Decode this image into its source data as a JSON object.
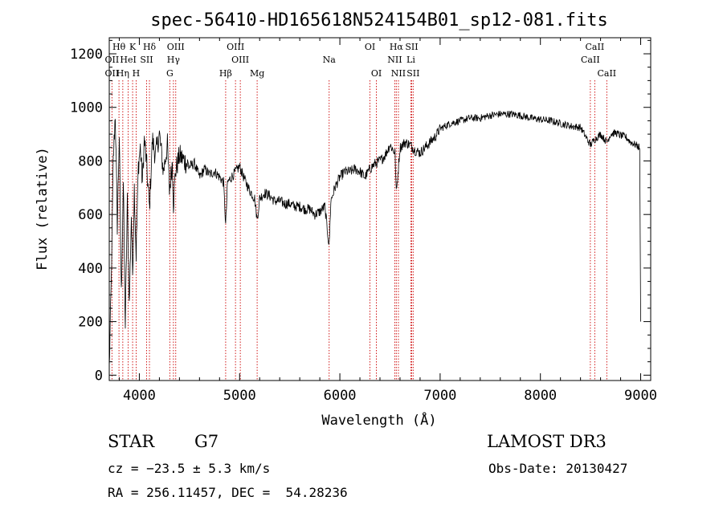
{
  "chart_data": {
    "type": "line",
    "title": "spec-56410-HD165618N524154B01_sp12-081.fits",
    "xlabel": "Wavelength (Å)",
    "ylabel": "Flux (relative)",
    "xlim": [
      3700,
      9100
    ],
    "ylim": [
      -20,
      1260
    ],
    "x_ticks": [
      4000,
      5000,
      6000,
      7000,
      8000,
      9000
    ],
    "y_ticks": [
      0,
      200,
      400,
      600,
      800,
      1000,
      1200
    ],
    "series": [
      {
        "x": [
          3700,
          3720,
          3740,
          3760,
          3780,
          3800,
          3820,
          3840,
          3860,
          3880,
          3900,
          3920,
          3933,
          3950,
          3968,
          3990,
          4010,
          4030,
          4050,
          4070,
          4101,
          4130,
          4160,
          4200,
          4240,
          4280,
          4300,
          4330,
          4340,
          4360,
          4400,
          4450,
          4500,
          4550,
          4600,
          4650,
          4700,
          4750,
          4800,
          4840,
          4861,
          4880,
          4920,
          4960,
          5000,
          5050,
          5100,
          5150,
          5175,
          5200,
          5250,
          5300,
          5350,
          5400,
          5450,
          5500,
          5550,
          5600,
          5650,
          5700,
          5750,
          5800,
          5850,
          5893,
          5910,
          5950,
          6000,
          6050,
          6100,
          6150,
          6200,
          6250,
          6300,
          6350,
          6400,
          6450,
          6500,
          6550,
          6563,
          6600,
          6650,
          6700,
          6750,
          6800,
          6850,
          6900,
          6950,
          7000,
          7100,
          7200,
          7300,
          7400,
          7500,
          7600,
          7700,
          7800,
          7900,
          8000,
          8100,
          8200,
          8300,
          8400,
          8498,
          8542,
          8600,
          8662,
          8700,
          8750,
          8800,
          8850,
          8900,
          8950,
          8990,
          9000
        ],
        "values": [
          20,
          350,
          800,
          980,
          560,
          900,
          300,
          720,
          180,
          650,
          260,
          600,
          380,
          700,
          450,
          780,
          850,
          720,
          880,
          800,
          620,
          880,
          820,
          900,
          760,
          860,
          690,
          800,
          640,
          760,
          820,
          800,
          780,
          790,
          740,
          770,
          750,
          760,
          740,
          720,
          560,
          720,
          740,
          760,
          780,
          730,
          690,
          660,
          580,
          660,
          680,
          670,
          650,
          650,
          640,
          640,
          630,
          630,
          620,
          620,
          600,
          610,
          630,
          480,
          650,
          700,
          740,
          760,
          760,
          770,
          760,
          740,
          770,
          790,
          800,
          820,
          860,
          830,
          680,
          850,
          870,
          860,
          840,
          830,
          850,
          870,
          890,
          920,
          940,
          950,
          960,
          960,
          970,
          975,
          975,
          970,
          960,
          955,
          950,
          940,
          930,
          925,
          860,
          880,
          900,
          870,
          900,
          905,
          895,
          890,
          870,
          860,
          850,
          200
        ]
      }
    ],
    "line_markers": [
      {
        "label": "Hθ",
        "x": 3797,
        "row": 1
      },
      {
        "label": "OII",
        "x": 3727,
        "row": 2
      },
      {
        "label": "OII",
        "x": 3727,
        "row": 3
      },
      {
        "label": "K",
        "x": 3933,
        "row": 1
      },
      {
        "label": "HeI",
        "x": 3889,
        "row": 2
      },
      {
        "label": "Hη",
        "x": 3835,
        "row": 3
      },
      {
        "label": "SII",
        "x": 4072,
        "row": 2
      },
      {
        "label": "H",
        "x": 3968,
        "row": 3
      },
      {
        "label": "Hδ",
        "x": 4101,
        "row": 1
      },
      {
        "label": "OIII",
        "x": 4363,
        "row": 1
      },
      {
        "label": "Hγ",
        "x": 4340,
        "row": 2
      },
      {
        "label": "G",
        "x": 4304,
        "row": 3
      },
      {
        "label": "OIII",
        "x": 4959,
        "row": 1
      },
      {
        "label": "OIII",
        "x": 5007,
        "row": 2
      },
      {
        "label": "Hβ",
        "x": 4861,
        "row": 3
      },
      {
        "label": "Mg",
        "x": 5175,
        "row": 3
      },
      {
        "label": "Na",
        "x": 5893,
        "row": 2
      },
      {
        "label": "OI",
        "x": 6300,
        "row": 1
      },
      {
        "label": "OI",
        "x": 6364,
        "row": 3
      },
      {
        "label": "Hα",
        "x": 6563,
        "row": 1
      },
      {
        "label": "SII",
        "x": 6716,
        "row": 1
      },
      {
        "label": "NII",
        "x": 6548,
        "row": 2
      },
      {
        "label": "Li",
        "x": 6708,
        "row": 2
      },
      {
        "label": "NII",
        "x": 6584,
        "row": 3
      },
      {
        "label": "SII",
        "x": 6731,
        "row": 3
      },
      {
        "label": "CaII",
        "x": 8542,
        "row": 1
      },
      {
        "label": "CaII",
        "x": 8498,
        "row": 2
      },
      {
        "label": "CaII",
        "x": 8662,
        "row": 3
      }
    ],
    "grid": false,
    "line_marker_color": "#cc0000"
  },
  "info": {
    "object_class": "STAR",
    "subclass": "G7",
    "survey": "LAMOST DR3",
    "cz": "cz = −23.5 ± 5.3 km/s",
    "obs_date": "Obs-Date: 20130427",
    "coords": "RA = 256.11457, DEC =  54.28236"
  }
}
